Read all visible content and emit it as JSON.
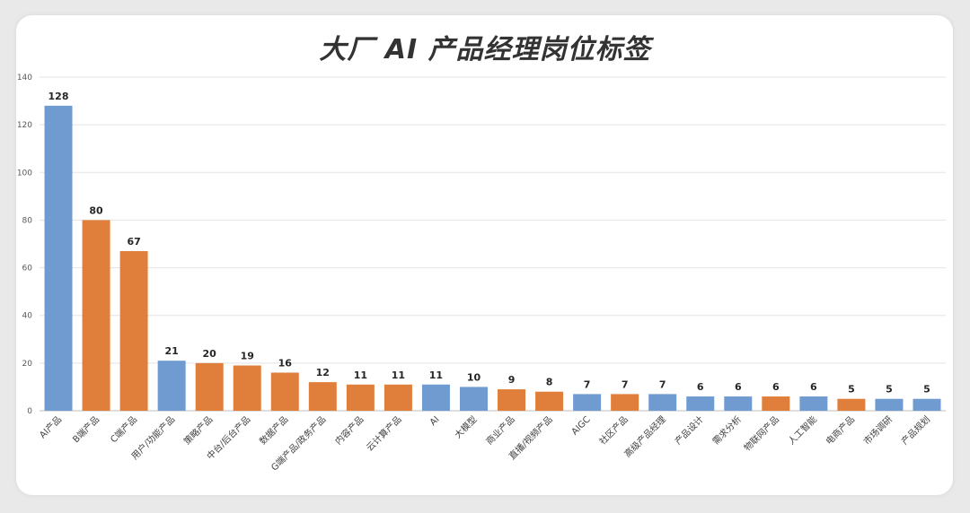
{
  "chart_data": {
    "type": "bar",
    "title": "大厂 AI 产品经理岗位标签",
    "xlabel": "",
    "ylabel": "",
    "ylim": [
      0,
      140
    ],
    "yticks": [
      0,
      20,
      40,
      60,
      80,
      100,
      120,
      140
    ],
    "grid": true,
    "legend": "none",
    "colors": {
      "blue": "#6f9bd1",
      "orange": "#e07f3c"
    },
    "categories": [
      "AI产品",
      "B端产品",
      "C端产品",
      "用户/功能产品",
      "策略产品",
      "中台/后台产品",
      "数据产品",
      "G端产品/政务产品",
      "内容产品",
      "云计算产品",
      "AI",
      "大模型",
      "商业产品",
      "直播/视频产品",
      "AIGC",
      "社区产品",
      "高级产品经理",
      "产品设计",
      "需求分析",
      "物联网产品",
      "人工智能",
      "电商产品",
      "市场调研",
      "产品规划"
    ],
    "values": [
      128,
      80,
      67,
      21,
      20,
      19,
      16,
      12,
      11,
      11,
      11,
      10,
      9,
      8,
      7,
      7,
      7,
      6,
      6,
      6,
      6,
      5,
      5,
      5
    ],
    "bar_colors": [
      "blue",
      "orange",
      "orange",
      "blue",
      "orange",
      "orange",
      "orange",
      "orange",
      "orange",
      "orange",
      "blue",
      "blue",
      "orange",
      "orange",
      "blue",
      "orange",
      "blue",
      "blue",
      "blue",
      "orange",
      "blue",
      "orange",
      "blue",
      "blue"
    ]
  }
}
